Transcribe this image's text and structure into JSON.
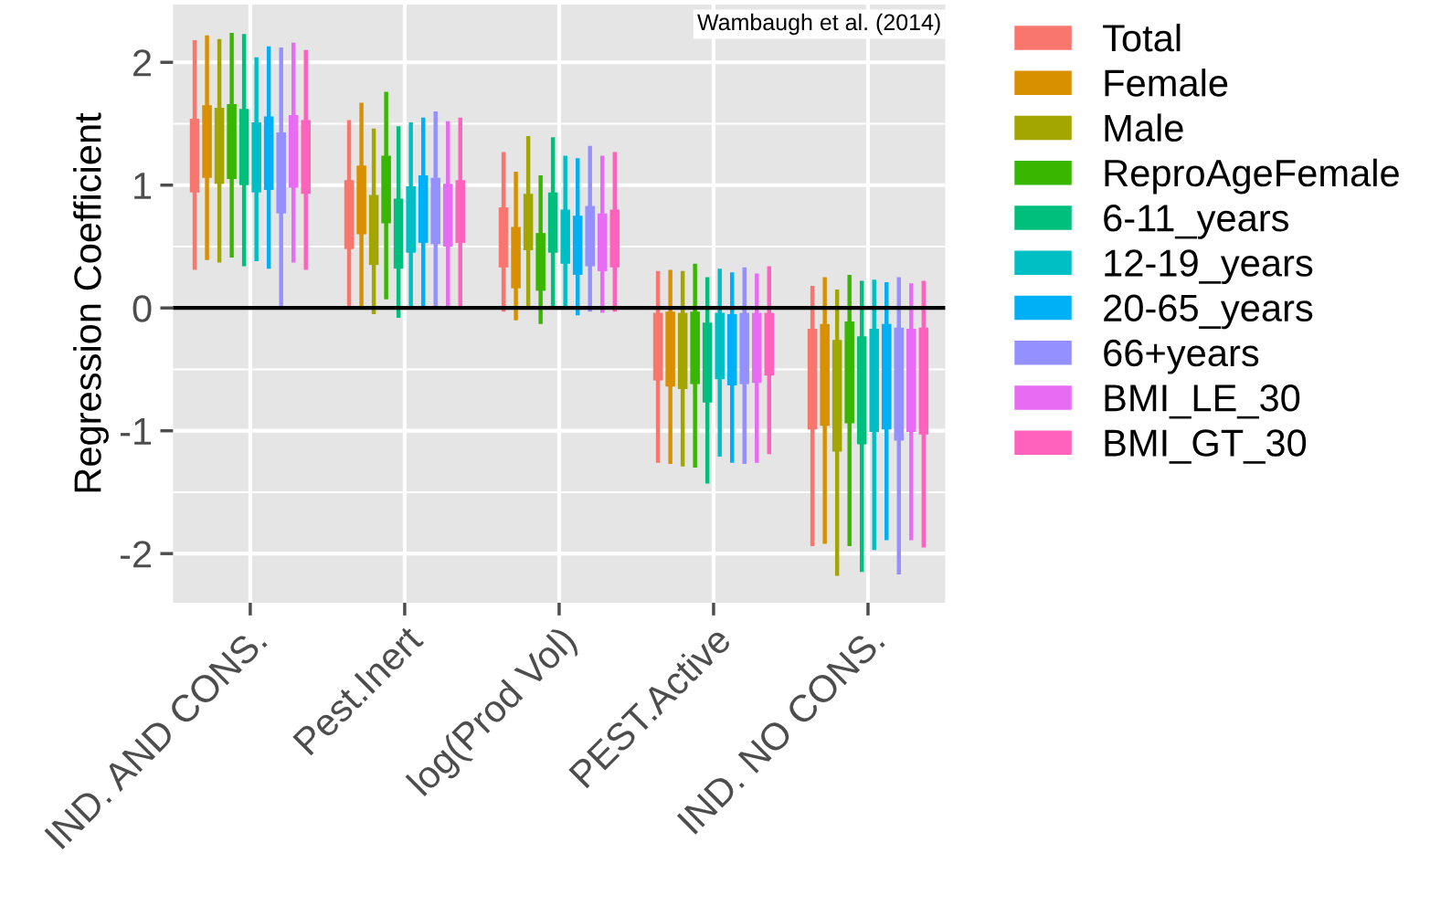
{
  "chart_data": {
    "type": "bar",
    "ylabel": "Regression Coefficient",
    "categories": [
      "IND. AND CONS.",
      "Pest.Inert",
      "log(Prod Vol)",
      "PEST.Active",
      "IND. NO CONS."
    ],
    "series": [
      {
        "name": "Total",
        "color": "#f8766d",
        "base": [
          0.94,
          0.48,
          0.33,
          -0.59,
          -0.99
        ],
        "values": [
          0.6,
          0.56,
          0.49,
          0.55,
          0.82
        ],
        "errors": [
          [
            0.31,
            2.18
          ],
          [
            0.0,
            1.53
          ],
          [
            -0.03,
            1.27
          ],
          [
            -1.26,
            0.3
          ],
          [
            -1.94,
            0.18
          ]
        ]
      },
      {
        "name": "Female",
        "color": "#d89000",
        "base": [
          1.06,
          0.6,
          0.16,
          -0.64,
          -0.96
        ],
        "values": [
          0.59,
          0.56,
          0.5,
          0.61,
          0.83
        ],
        "errors": [
          [
            0.39,
            2.22
          ],
          [
            0.0,
            1.67
          ],
          [
            -0.1,
            1.11
          ],
          [
            -1.27,
            0.31
          ],
          [
            -1.92,
            0.25
          ]
        ]
      },
      {
        "name": "Male",
        "color": "#a3a500",
        "base": [
          1.01,
          0.35,
          0.47,
          -0.66,
          -1.17
        ],
        "values": [
          0.62,
          0.57,
          0.46,
          0.62,
          0.91
        ],
        "errors": [
          [
            0.37,
            2.19
          ],
          [
            -0.05,
            1.46
          ],
          [
            0.0,
            1.4
          ],
          [
            -1.29,
            0.3
          ],
          [
            -2.18,
            0.15
          ]
        ]
      },
      {
        "name": "ReproAgeFemale",
        "color": "#39b600",
        "base": [
          1.05,
          0.69,
          0.14,
          -0.62,
          -0.94
        ],
        "values": [
          0.61,
          0.55,
          0.47,
          0.59,
          0.83
        ],
        "errors": [
          [
            0.41,
            2.24
          ],
          [
            0.07,
            1.76
          ],
          [
            -0.13,
            1.08
          ],
          [
            -1.3,
            0.36
          ],
          [
            -1.94,
            0.27
          ]
        ]
      },
      {
        "name": "6-11_years",
        "color": "#00bf7d",
        "base": [
          1.0,
          0.32,
          0.45,
          -0.77,
          -1.11
        ],
        "values": [
          0.62,
          0.57,
          0.49,
          0.65,
          0.88
        ],
        "errors": [
          [
            0.34,
            2.23
          ],
          [
            -0.08,
            1.48
          ],
          [
            0.0,
            1.39
          ],
          [
            -1.43,
            0.25
          ],
          [
            -2.15,
            0.22
          ]
        ]
      },
      {
        "name": "12-19_years",
        "color": "#00bfc4",
        "base": [
          0.94,
          0.45,
          0.36,
          -0.58,
          -1.01
        ],
        "values": [
          0.57,
          0.54,
          0.44,
          0.54,
          0.84
        ],
        "errors": [
          [
            0.38,
            2.04
          ],
          [
            0.0,
            1.51
          ],
          [
            0.0,
            1.24
          ],
          [
            -1.21,
            0.32
          ],
          [
            -1.97,
            0.23
          ]
        ]
      },
      {
        "name": "20-65_years",
        "color": "#00b0f6",
        "base": [
          0.96,
          0.53,
          0.27,
          -0.63,
          -0.99
        ],
        "values": [
          0.6,
          0.55,
          0.48,
          0.58,
          0.86
        ],
        "errors": [
          [
            0.32,
            2.13
          ],
          [
            0.0,
            1.55
          ],
          [
            -0.06,
            1.22
          ],
          [
            -1.26,
            0.29
          ],
          [
            -1.89,
            0.21
          ]
        ]
      },
      {
        "name": "66+years",
        "color": "#9590ff",
        "base": [
          0.77,
          0.52,
          0.34,
          -0.62,
          -1.08
        ],
        "values": [
          0.66,
          0.54,
          0.49,
          0.58,
          0.92
        ],
        "errors": [
          [
            0.0,
            2.12
          ],
          [
            0.0,
            1.6
          ],
          [
            -0.03,
            1.32
          ],
          [
            -1.27,
            0.33
          ],
          [
            -2.17,
            0.25
          ]
        ]
      },
      {
        "name": "BMI_LE_30",
        "color": "#e76bf3",
        "base": [
          0.98,
          0.5,
          0.3,
          -0.61,
          -1.01
        ],
        "values": [
          0.59,
          0.51,
          0.47,
          0.57,
          0.84
        ],
        "errors": [
          [
            0.37,
            2.16
          ],
          [
            0.0,
            1.52
          ],
          [
            -0.04,
            1.24
          ],
          [
            -1.26,
            0.28
          ],
          [
            -1.89,
            0.2
          ]
        ]
      },
      {
        "name": "BMI_GT_30",
        "color": "#ff62bc",
        "base": [
          0.93,
          0.53,
          0.33,
          -0.55,
          -1.03
        ],
        "values": [
          0.6,
          0.51,
          0.47,
          0.51,
          0.87
        ],
        "errors": [
          [
            0.31,
            2.1
          ],
          [
            0.0,
            1.55
          ],
          [
            -0.03,
            1.27
          ],
          [
            -1.19,
            0.34
          ],
          [
            -1.95,
            0.22
          ]
        ]
      }
    ],
    "ylim": [
      -2.4,
      2.47
    ],
    "yticks": [
      -2,
      -1,
      0,
      1,
      2
    ],
    "ref_lines": [
      {
        "axis": "y",
        "value": 0,
        "color": "#000000"
      }
    ],
    "annotations": [
      "Wambaugh et al. (2014)"
    ],
    "grid": true,
    "legend": "right"
  }
}
